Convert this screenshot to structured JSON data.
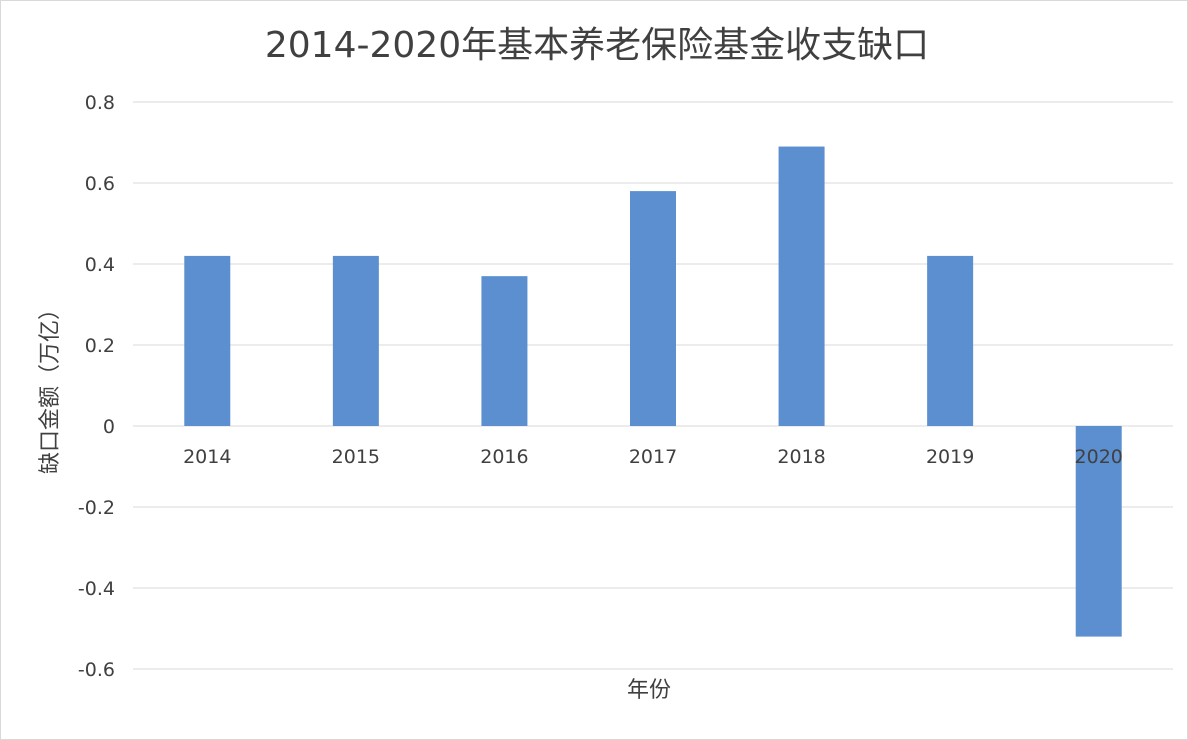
{
  "chart_data": {
    "type": "bar",
    "title": "2014-2020年基本养老保险基金收支缺口",
    "xlabel": "年份",
    "ylabel": "缺口金额（万亿）",
    "categories": [
      "2014",
      "2015",
      "2016",
      "2017",
      "2018",
      "2019",
      "2020"
    ],
    "values": [
      0.42,
      0.42,
      0.37,
      0.58,
      0.69,
      0.42,
      -0.52
    ],
    "ylim": [
      -0.6,
      0.8
    ],
    "yticks": [
      0.8,
      0.6,
      0.4,
      0.2,
      0,
      -0.2,
      -0.4,
      -0.6
    ],
    "ytick_labels": [
      "0.8",
      "0.6",
      "0.4",
      "0.2",
      "0",
      "-0.2",
      "-0.4",
      "-0.6"
    ],
    "bar_color": "#5b8fd0",
    "grid": true,
    "legend": "none"
  }
}
